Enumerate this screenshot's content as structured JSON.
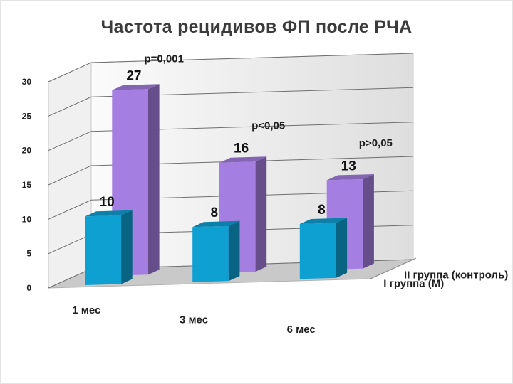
{
  "chart_data": {
    "type": "bar",
    "title": "Частота рецидивов ФП после РЧА",
    "categories": [
      "1 мес",
      "3 мес",
      "6 мес"
    ],
    "series": [
      {
        "name": "I группа (М)",
        "values": [
          10,
          8,
          8
        ],
        "color": "#0fa0d2"
      },
      {
        "name": "II группа (контроль)",
        "values": [
          27,
          16,
          13
        ],
        "color": "#a47ee0"
      }
    ],
    "ylim": [
      0,
      30
    ],
    "yticks": [
      0,
      5,
      10,
      15,
      20,
      25,
      30
    ],
    "annotations": [
      "p=0,001",
      "p<0,05",
      "p>0,05"
    ],
    "grid": true
  }
}
